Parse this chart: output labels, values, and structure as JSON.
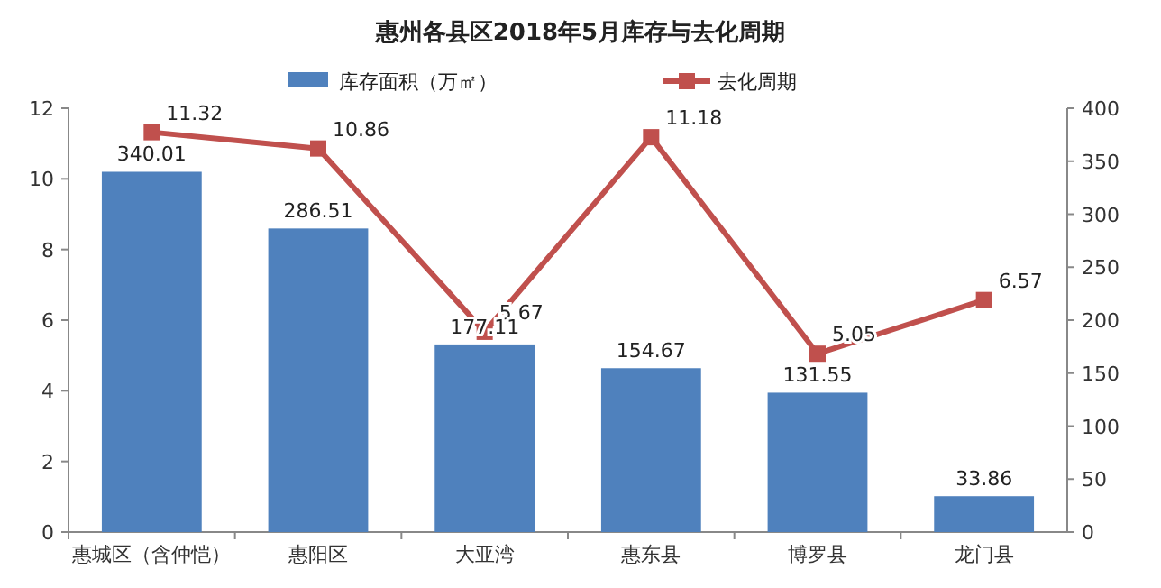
{
  "chart_data": {
    "type": "bar",
    "title": "惠州各县区2018年5月库存与去化周期",
    "categories": [
      "惠城区（含仲恺）",
      "惠阳区",
      "大亚湾",
      "惠东县",
      "博罗县",
      "龙门县"
    ],
    "series": [
      {
        "name": "库存面积（万㎡）",
        "axis": "y2",
        "color": "#4f81bd",
        "values": [
          340.01,
          286.51,
          177.11,
          154.67,
          131.55,
          33.86
        ]
      },
      {
        "name": "去化周期",
        "type": "line",
        "axis": "y",
        "color": "#c0504d",
        "marker": "square",
        "values": [
          11.32,
          10.86,
          5.67,
          11.18,
          5.05,
          6.57
        ]
      }
    ],
    "ylim": [
      0,
      12
    ],
    "yticks": [
      0,
      2,
      4,
      6,
      8,
      10,
      12
    ],
    "y2lim": [
      0,
      400
    ],
    "y2ticks": [
      0,
      50,
      100,
      150,
      200,
      250,
      300,
      350,
      400
    ],
    "data_labels": true,
    "legend": "top",
    "grid": false
  }
}
